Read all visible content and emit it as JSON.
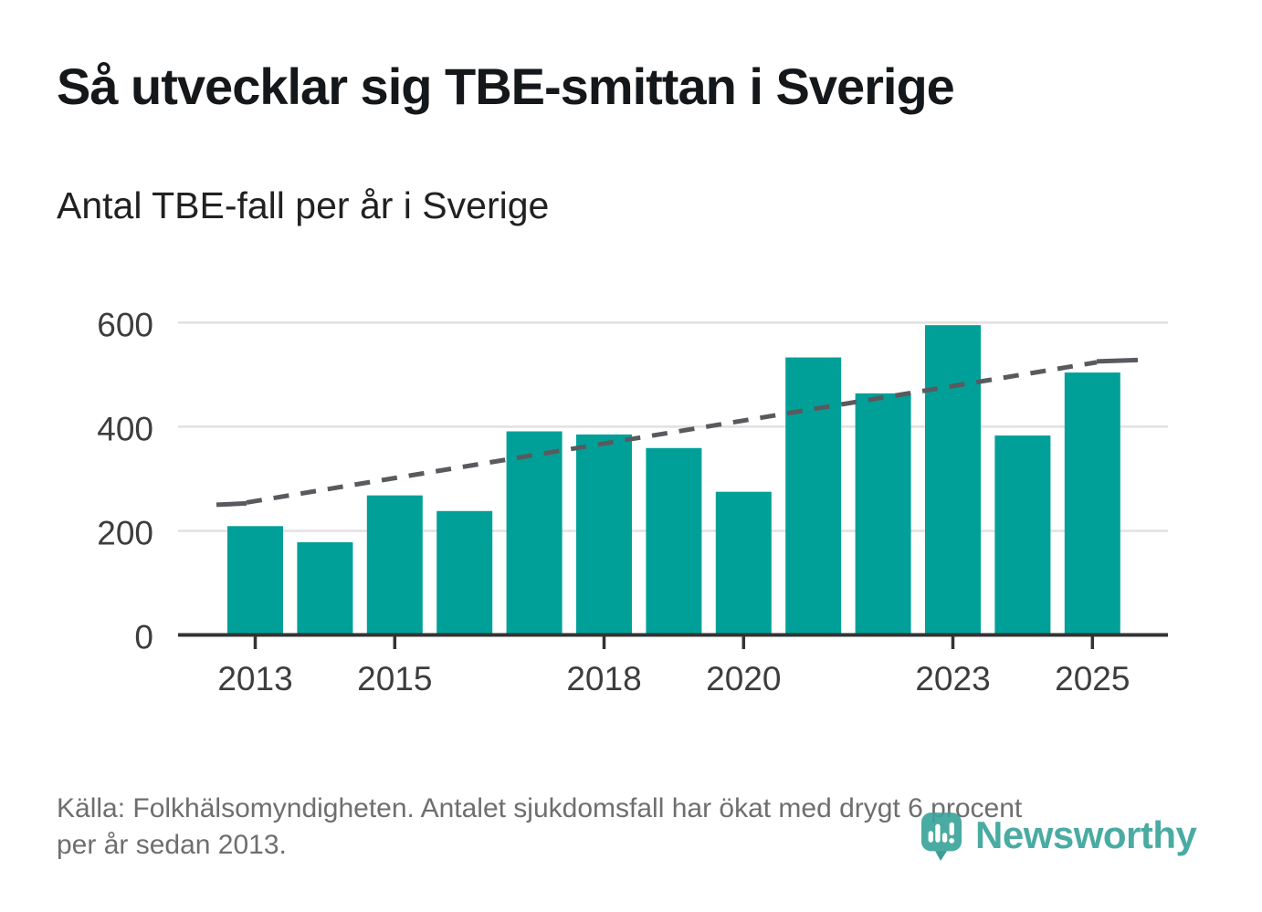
{
  "header": {
    "title": "Så utvecklar sig TBE-smittan i Sverige",
    "subtitle": "Antal TBE-fall per år i Sverige"
  },
  "footer": {
    "source_lines": [
      "Källa: Folkhälsomyndigheten. Antalet sjukdomsfall har ökat med drygt 6 procent",
      "per år sedan 2013."
    ]
  },
  "logo": {
    "name": "Newsworthy",
    "icon": "newsworthy-pin-barchart-icon"
  },
  "colors": {
    "background": "#ffffff",
    "bar": "#00a099",
    "trend": "#595a5e",
    "grid": "#e1e1e1",
    "axis": "#333333",
    "tick_label": "#3d3d3d",
    "title": "#15181a",
    "subtitle": "#212121",
    "source": "#6e6e6e",
    "logo": "#3ba49c"
  },
  "chart_data": {
    "type": "bar",
    "title": "Så utvecklar sig TBE-smittan i Sverige",
    "subtitle": "Antal TBE-fall per år i Sverige",
    "xlabel": "",
    "ylabel": "Antal TBE-fall",
    "categories": [
      2013,
      2014,
      2015,
      2016,
      2017,
      2018,
      2019,
      2020,
      2021,
      2022,
      2023,
      2024,
      2025
    ],
    "values": [
      209,
      178,
      268,
      238,
      391,
      385,
      359,
      275,
      533,
      464,
      595,
      383,
      504
    ],
    "x_axis": {
      "tick_labels": [
        "2013",
        "2015",
        "2018",
        "2020",
        "2023",
        "2025"
      ]
    },
    "y_axis": {
      "ticks": [
        0,
        200,
        400,
        600
      ]
    },
    "ylim": [
      0,
      620
    ],
    "grid": true,
    "legend": "none",
    "bar_color": "#00a099",
    "trend": {
      "style": "dashed-line",
      "color": "#595a5e",
      "start_year": 2013,
      "start_value": 250,
      "end_year": 2025,
      "end_value": 528,
      "note": "ökning drygt 6 procent per år sedan 2013"
    }
  }
}
